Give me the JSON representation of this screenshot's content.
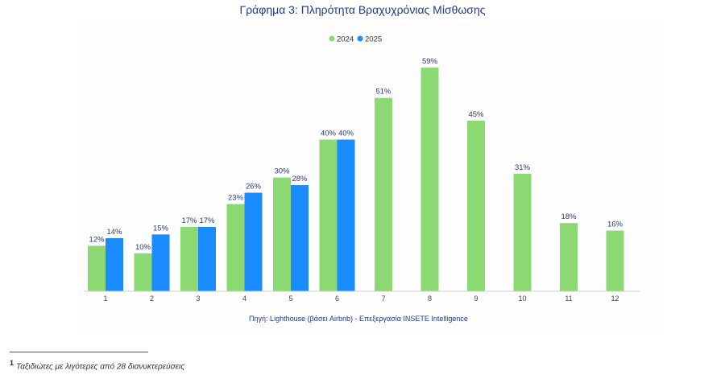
{
  "chart_data": {
    "type": "bar",
    "title": "Γράφημα 3: Πληρότητα Βραχυχρόνιας Μίσθωσης",
    "categories": [
      "1",
      "2",
      "3",
      "4",
      "5",
      "6",
      "7",
      "8",
      "9",
      "10",
      "11",
      "12"
    ],
    "series": [
      {
        "name": "2024",
        "color": "#8cd973",
        "values": [
          12,
          10,
          17,
          23,
          30,
          40,
          51,
          59,
          45,
          31,
          18,
          16
        ],
        "labels": [
          "12%",
          "10%",
          "17%",
          "23%",
          "30%",
          "40%",
          "51%",
          "59%",
          "45%",
          "31%",
          "18%",
          "16%"
        ]
      },
      {
        "name": "2025",
        "color": "#1a8cff",
        "values": [
          14,
          15,
          17,
          26,
          28,
          40,
          null,
          null,
          null,
          null,
          null,
          null
        ],
        "labels": [
          "14%",
          "15%",
          "17%",
          "26%",
          "28%",
          "40%",
          "",
          "",
          "",
          "",
          "",
          ""
        ]
      }
    ],
    "ylim": [
      0,
      59
    ],
    "xlabel": "",
    "ylabel": "",
    "grid": false,
    "legend_position": "top-center",
    "source_note": "Πηγή: Lighthouse (βάσει Airbnb) - Επεξεργασία INSETE Intelligence"
  },
  "footnote": {
    "marker": "1",
    "text": "Ταξιδιώτες με λιγότερες από 28 διανυκτερεύσεις"
  }
}
